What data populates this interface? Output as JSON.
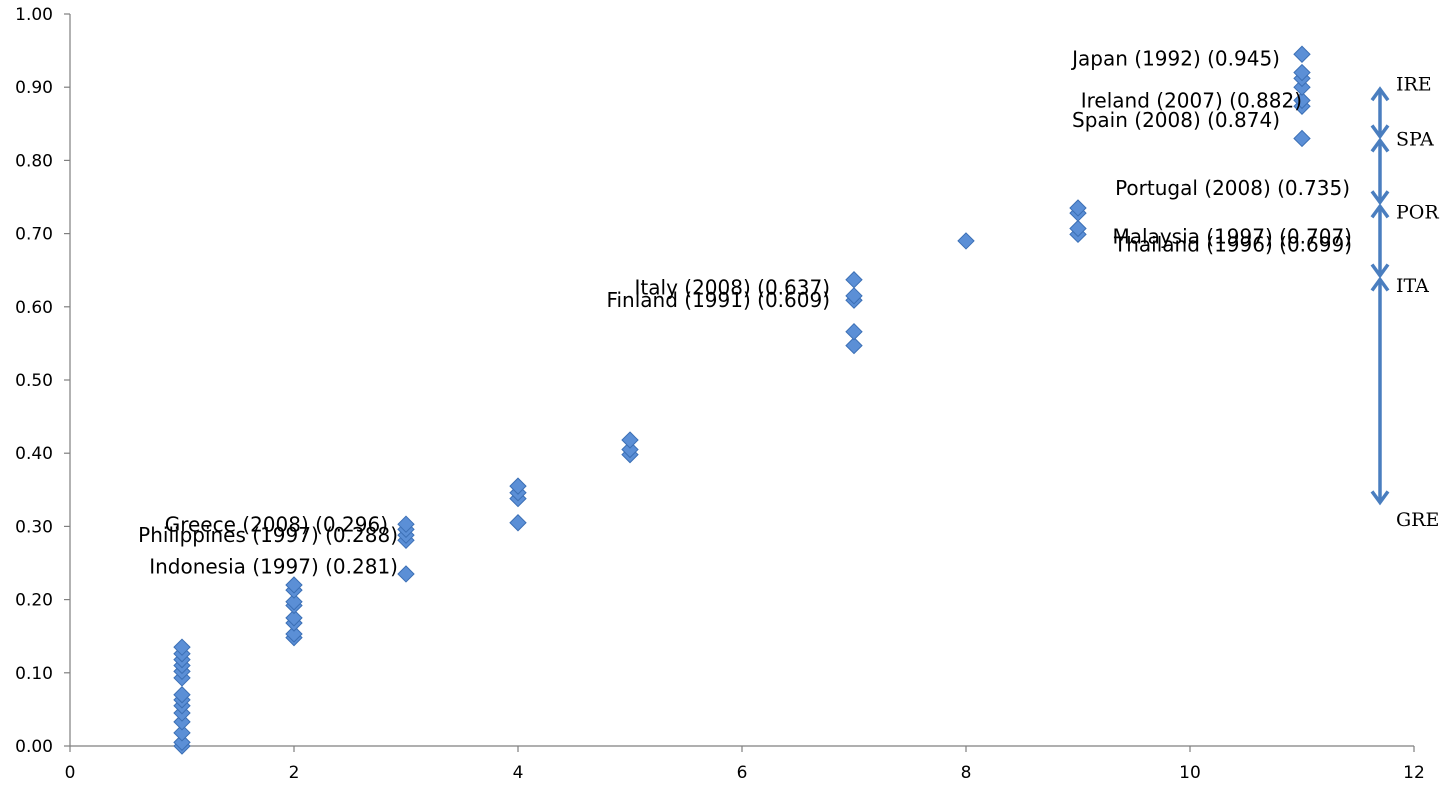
{
  "chart_data": {
    "type": "scatter",
    "title": "",
    "xlabel": "",
    "ylabel": "",
    "xlim": [
      0,
      12
    ],
    "ylim": [
      0,
      1
    ],
    "x_ticks": [
      0,
      2,
      4,
      6,
      8,
      10,
      12
    ],
    "y_ticks": [
      0,
      0.1,
      0.2,
      0.3,
      0.4,
      0.5,
      0.6,
      0.7,
      0.8,
      0.9,
      1.0
    ],
    "x_tick_labels": [
      "0",
      "2",
      "4",
      "6",
      "8",
      "10",
      "12"
    ],
    "y_tick_labels": [
      "0.00",
      "0.10",
      "0.20",
      "0.30",
      "0.40",
      "0.50",
      "0.60",
      "0.70",
      "0.80",
      "0.90",
      "1.00"
    ],
    "grid": false,
    "marker": "diamond",
    "marker_color": "#5b8fd6",
    "points": [
      {
        "x": 1,
        "y": 0.0
      },
      {
        "x": 1,
        "y": 0.005
      },
      {
        "x": 1,
        "y": 0.018
      },
      {
        "x": 1,
        "y": 0.033
      },
      {
        "x": 1,
        "y": 0.045
      },
      {
        "x": 1,
        "y": 0.055
      },
      {
        "x": 1,
        "y": 0.063
      },
      {
        "x": 1,
        "y": 0.07
      },
      {
        "x": 1,
        "y": 0.093
      },
      {
        "x": 1,
        "y": 0.102
      },
      {
        "x": 1,
        "y": 0.11
      },
      {
        "x": 1,
        "y": 0.118
      },
      {
        "x": 1,
        "y": 0.126
      },
      {
        "x": 1,
        "y": 0.135
      },
      {
        "x": 2,
        "y": 0.148
      },
      {
        "x": 2,
        "y": 0.153
      },
      {
        "x": 2,
        "y": 0.168
      },
      {
        "x": 2,
        "y": 0.175
      },
      {
        "x": 2,
        "y": 0.192
      },
      {
        "x": 2,
        "y": 0.197
      },
      {
        "x": 2,
        "y": 0.213
      },
      {
        "x": 2,
        "y": 0.22
      },
      {
        "x": 3,
        "y": 0.235
      },
      {
        "x": 3,
        "y": 0.281
      },
      {
        "x": 3,
        "y": 0.288
      },
      {
        "x": 3,
        "y": 0.296
      },
      {
        "x": 3,
        "y": 0.303
      },
      {
        "x": 4,
        "y": 0.305
      },
      {
        "x": 4,
        "y": 0.338
      },
      {
        "x": 4,
        "y": 0.346
      },
      {
        "x": 4,
        "y": 0.355
      },
      {
        "x": 5,
        "y": 0.398
      },
      {
        "x": 5,
        "y": 0.405
      },
      {
        "x": 5,
        "y": 0.418
      },
      {
        "x": 7,
        "y": 0.547
      },
      {
        "x": 7,
        "y": 0.566
      },
      {
        "x": 7,
        "y": 0.609
      },
      {
        "x": 7,
        "y": 0.615
      },
      {
        "x": 7,
        "y": 0.637
      },
      {
        "x": 8,
        "y": 0.69
      },
      {
        "x": 9,
        "y": 0.699
      },
      {
        "x": 9,
        "y": 0.707
      },
      {
        "x": 9,
        "y": 0.728
      },
      {
        "x": 9,
        "y": 0.735
      },
      {
        "x": 11,
        "y": 0.83
      },
      {
        "x": 11,
        "y": 0.874
      },
      {
        "x": 11,
        "y": 0.882
      },
      {
        "x": 11,
        "y": 0.9
      },
      {
        "x": 11,
        "y": 0.912
      },
      {
        "x": 11,
        "y": 0.92
      },
      {
        "x": 11,
        "y": 0.945
      }
    ],
    "annotations": [
      {
        "text": "Japan (1992) (0.945)",
        "x": 11,
        "y": 0.945
      },
      {
        "text": "Ireland (2007) (0.882)",
        "x": 11,
        "y": 0.882
      },
      {
        "text": "Spain (2008) (0.874)",
        "x": 11,
        "y": 0.874
      },
      {
        "text": "Portugal (2008) (0.735)",
        "x": 9,
        "y": 0.735
      },
      {
        "text": "Malaysia (1997) (0.707)",
        "x": 9,
        "y": 0.707
      },
      {
        "text": "Thailand (1996) (0.699)",
        "x": 9,
        "y": 0.699
      },
      {
        "text": "Italy (2008) (0.637)",
        "x": 7,
        "y": 0.637
      },
      {
        "text": "Finland (1991) (0.609)",
        "x": 7,
        "y": 0.609
      },
      {
        "text": "Greece (2008) (0.296)",
        "x": 3,
        "y": 0.296
      },
      {
        "text": "Philippines (1997) (0.288)",
        "x": 3,
        "y": 0.288
      },
      {
        "text": "Indonesia (1997) (0.281)",
        "x": 3,
        "y": 0.281
      }
    ],
    "range_arrows": [
      {
        "from": "IRE",
        "to": "SPA",
        "y_from": 0.9,
        "y_to": 0.83
      },
      {
        "from": "SPA",
        "to": "POR",
        "y_from": 0.83,
        "y_to": 0.74
      },
      {
        "from": "POR",
        "to": "ITA",
        "y_from": 0.74,
        "y_to": 0.64
      },
      {
        "from": "ITA",
        "to": "GRE",
        "y_from": 0.64,
        "y_to": 0.33
      }
    ],
    "range_labels": [
      {
        "text": "IRE",
        "y": 0.905
      },
      {
        "text": "SPA",
        "y": 0.83
      },
      {
        "text": "POR",
        "y": 0.73
      },
      {
        "text": "ITA",
        "y": 0.63
      },
      {
        "text": "GRE",
        "y": 0.31
      }
    ]
  }
}
